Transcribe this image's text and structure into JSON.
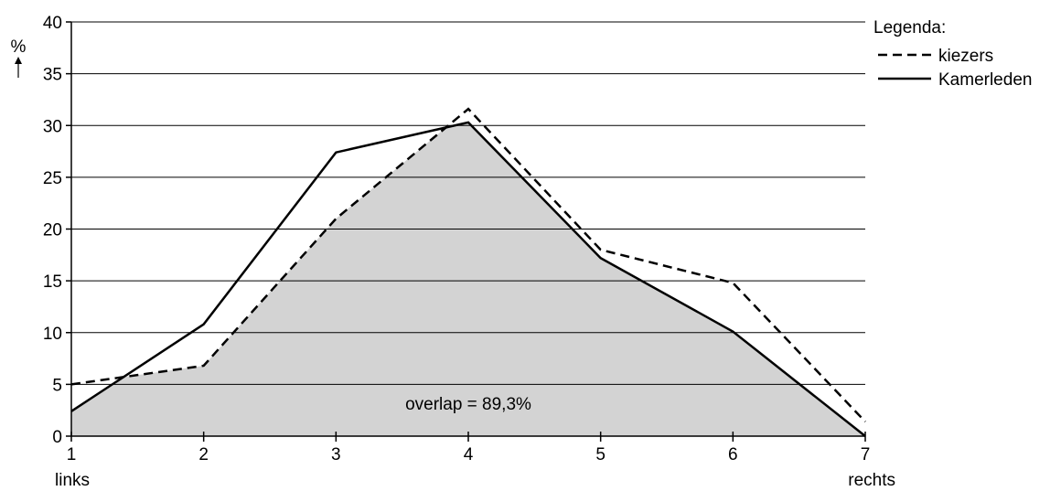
{
  "chart_data": {
    "type": "line",
    "x": [
      1,
      2,
      3,
      4,
      5,
      6,
      7
    ],
    "x_tick_labels": [
      "1",
      "2",
      "3",
      "4",
      "5",
      "6",
      "7"
    ],
    "x_end_labels": {
      "left": "links",
      "right": "rechts"
    },
    "ylabel": "%",
    "ylim": [
      0,
      40
    ],
    "y_ticks": [
      0,
      5,
      10,
      15,
      20,
      25,
      30,
      35,
      40
    ],
    "grid": "horizontal",
    "series": [
      {
        "name": "kiezers",
        "style": "dashed",
        "values": [
          5.0,
          6.8,
          21.0,
          31.6,
          18.0,
          14.8,
          1.4
        ]
      },
      {
        "name": "Kamerleden",
        "style": "solid",
        "values": [
          2.4,
          10.8,
          27.4,
          30.3,
          17.2,
          10.1,
          0.0
        ]
      }
    ],
    "overlap_fill_color": "#d3d3d3",
    "annotation": "overlap = 89,3%",
    "legend_title": "Legenda:",
    "legend_position": "top-right"
  }
}
